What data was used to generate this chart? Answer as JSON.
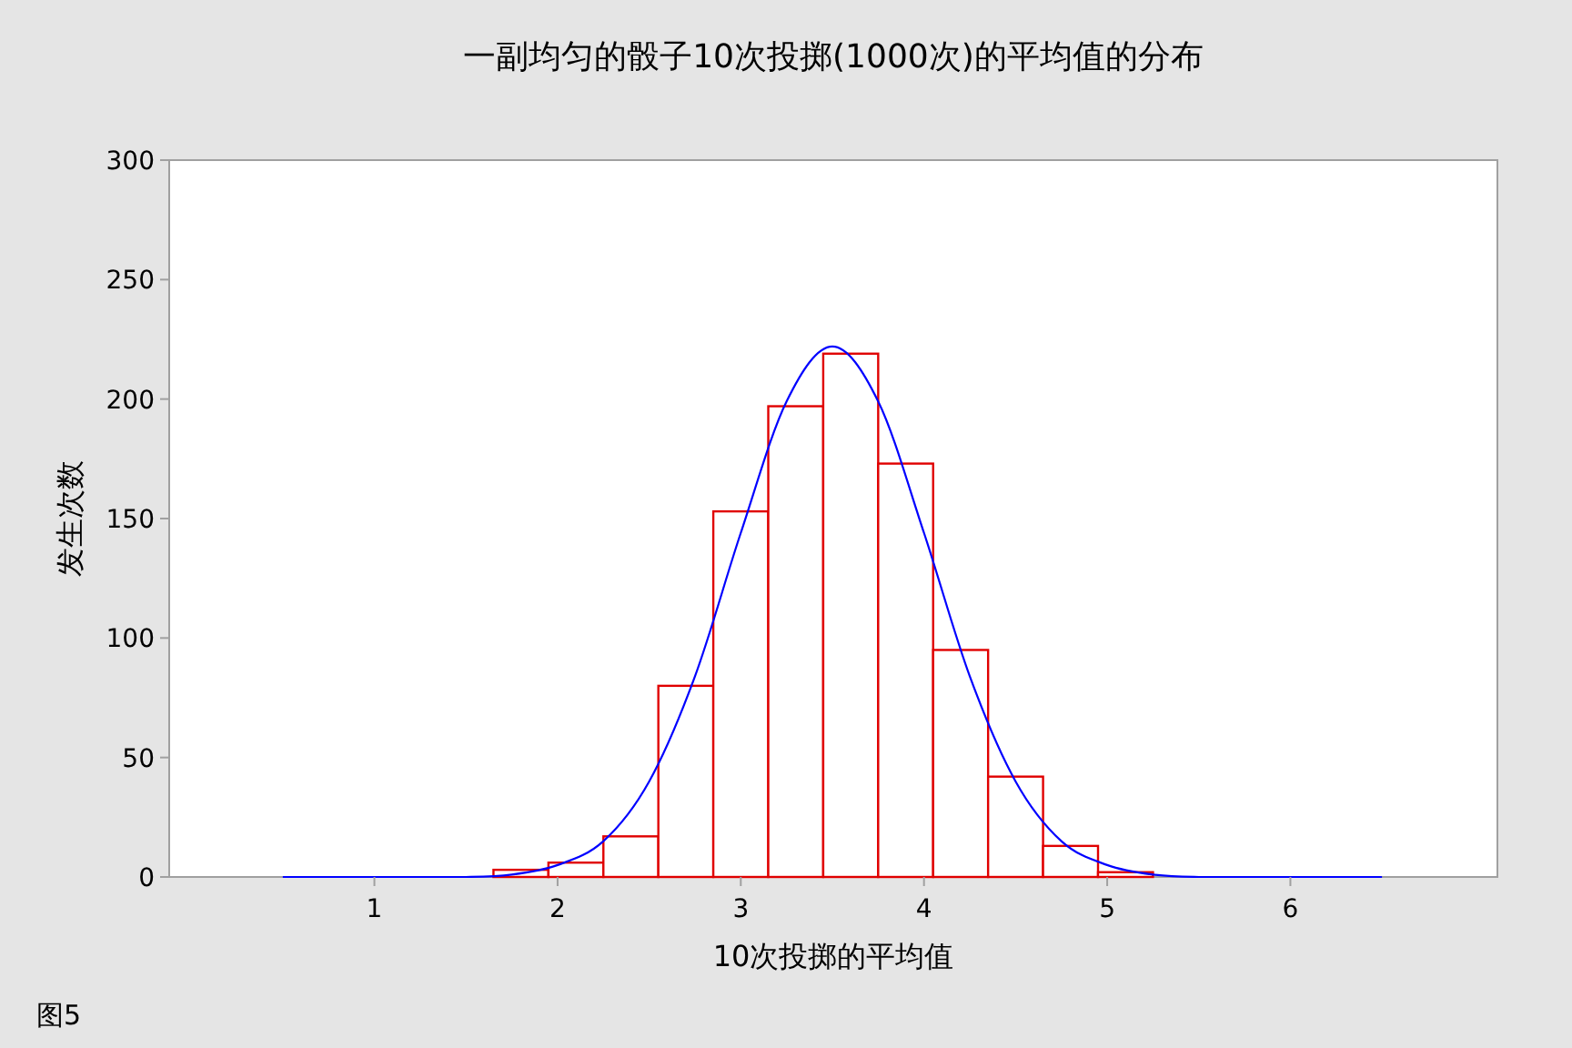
{
  "chart_data": {
    "type": "histogram",
    "title": "一副均匀的骰子10次投掷(1000次)的平均值的分布",
    "xlabel": "10次投掷的平均值",
    "ylabel": "发生次数",
    "xlim": [
      -0.12,
      7.13
    ],
    "xticks": [
      1,
      2,
      3,
      4,
      5,
      6
    ],
    "ylim": [
      0,
      300
    ],
    "yticks": [
      0,
      50,
      100,
      150,
      200,
      250,
      300
    ],
    "grid": false,
    "series": [
      {
        "color": "#e00000",
        "bins": [
          1.65,
          1.95,
          2.25,
          2.55,
          2.85,
          3.15,
          3.45,
          3.75,
          4.05,
          4.35,
          4.65,
          4.95,
          5.25
        ],
        "values": [
          3,
          6,
          17,
          80,
          153,
          197,
          219,
          173,
          95,
          42,
          13,
          2
        ]
      },
      {
        "type": "line",
        "color": "#0000ff",
        "x": [
          0.5,
          1,
          1.5,
          1.75,
          2,
          2.25,
          2.5,
          2.75,
          3,
          3.25,
          3.5,
          3.75,
          4,
          4.25,
          4.5,
          4.75,
          5,
          5.25,
          5.5,
          6,
          6.5
        ],
        "values": [
          0,
          0,
          0,
          1,
          5,
          15,
          40,
          84,
          144,
          199,
          222,
          199,
          144,
          84,
          40,
          15,
          5,
          1,
          0,
          0,
          0
        ]
      }
    ],
    "annotations": [
      "图5"
    ]
  }
}
